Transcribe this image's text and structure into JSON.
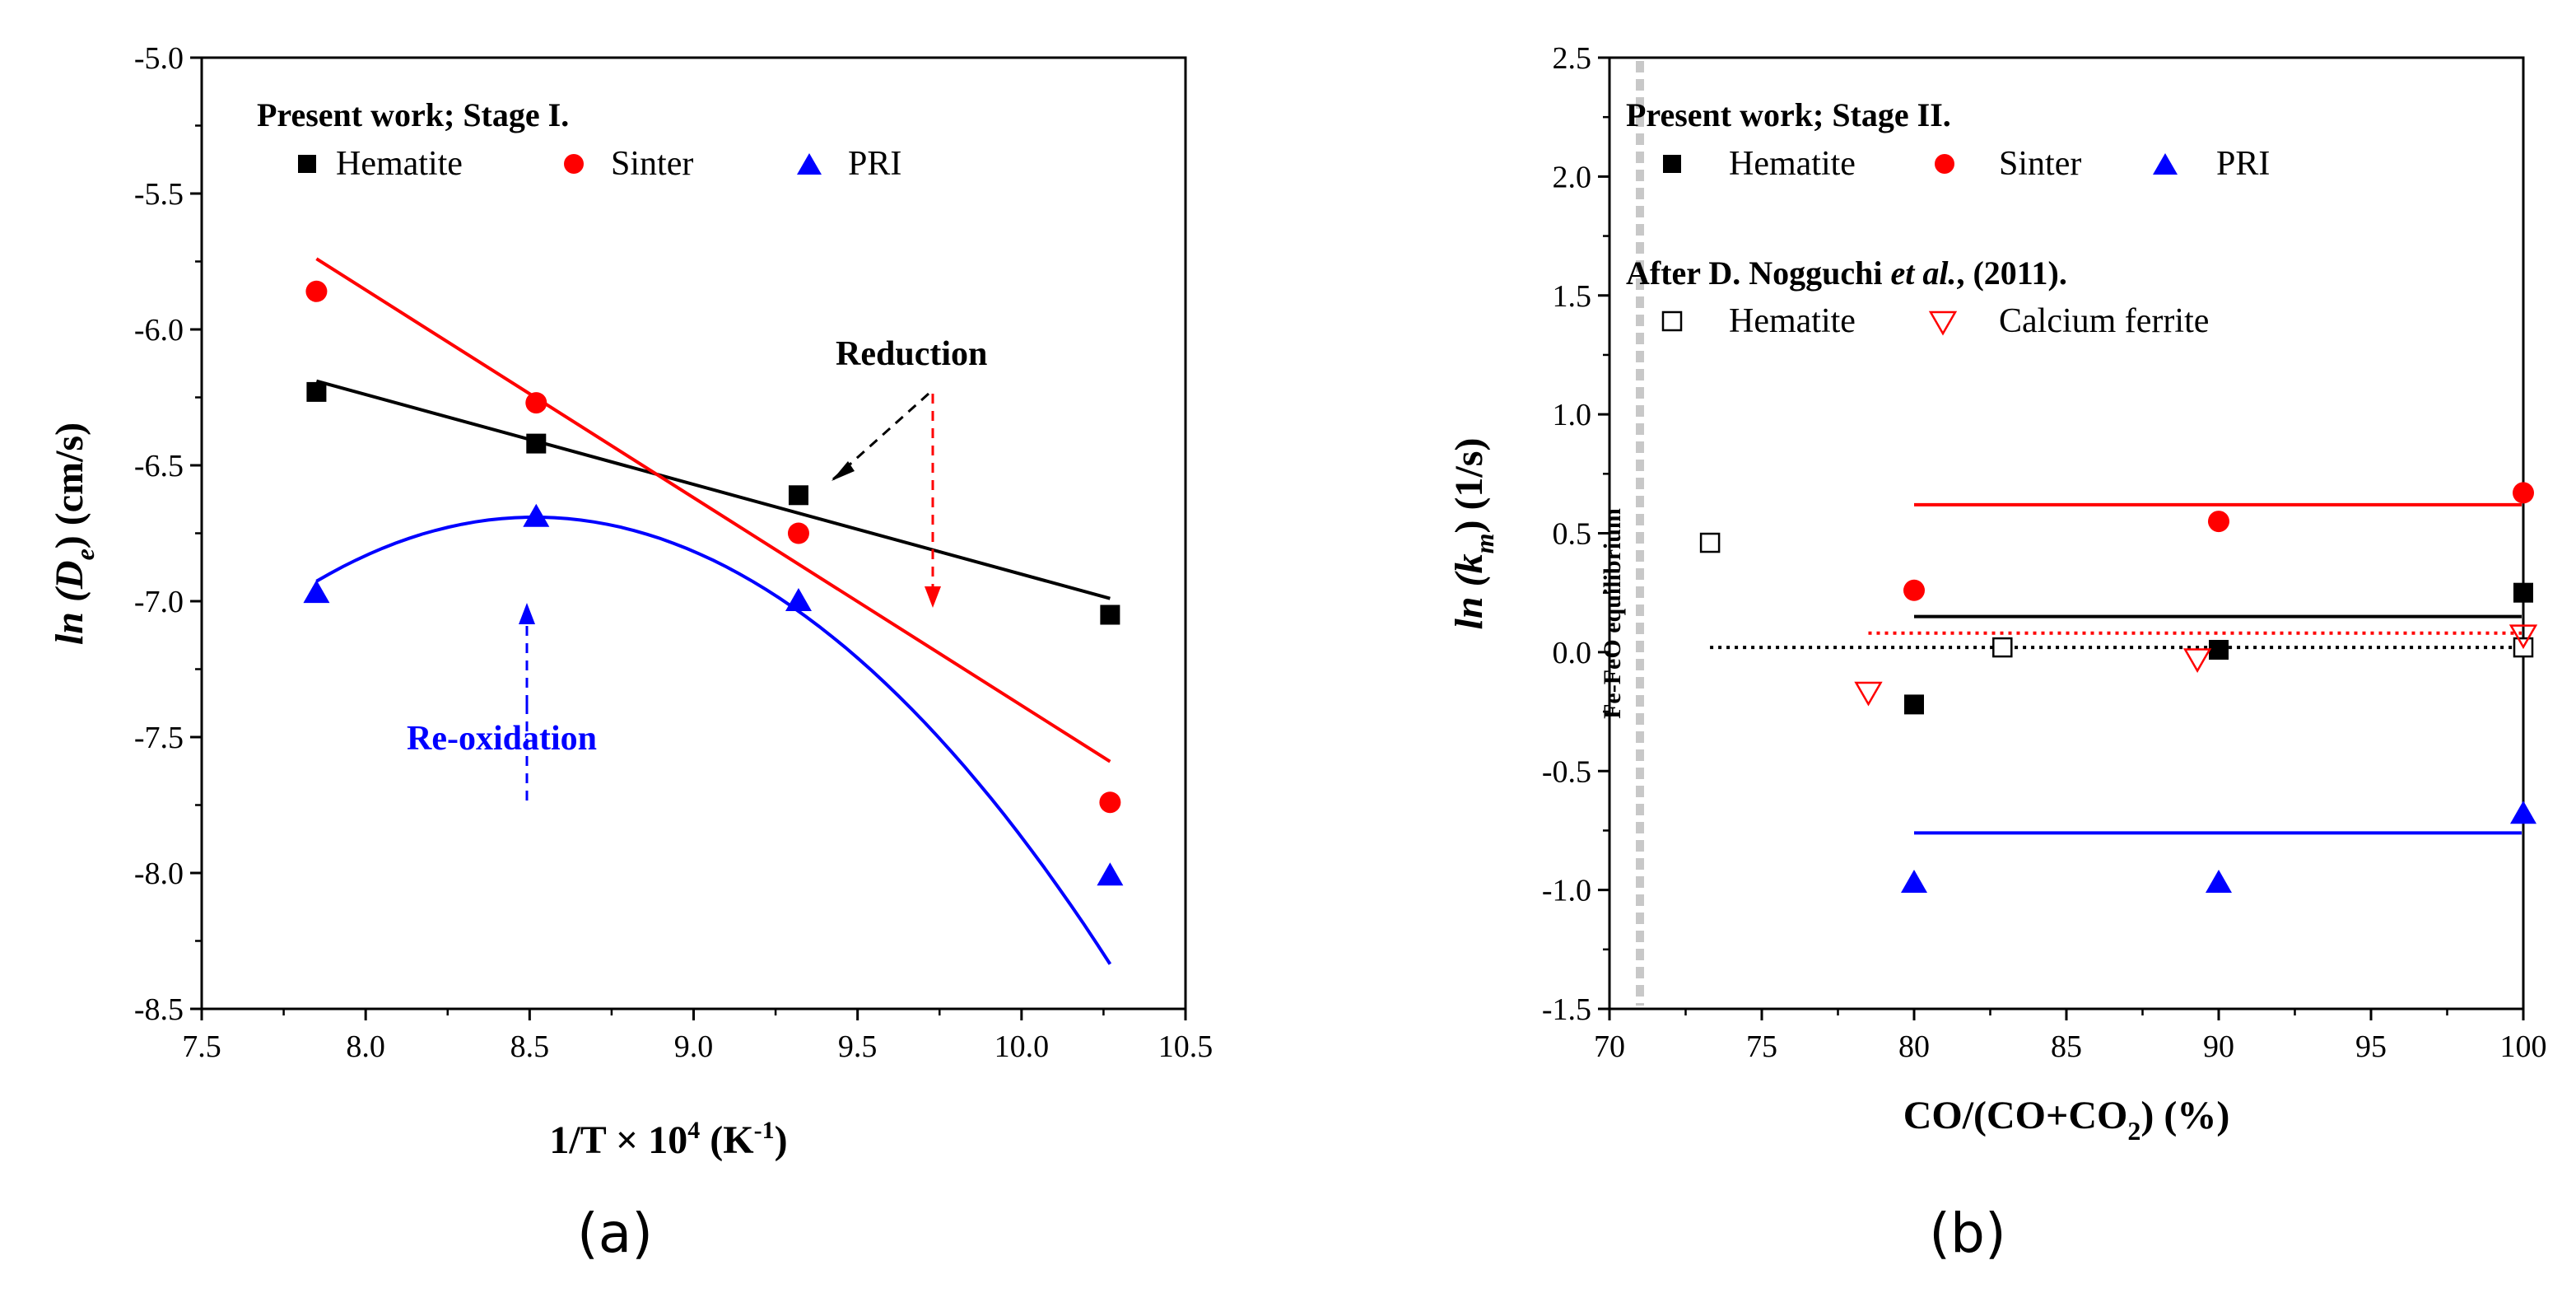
{
  "chart_data": [
    {
      "panel": "(a)",
      "type": "scatter",
      "xlabel": "1/T × 10",
      "xlabel_sup": "4",
      "xlabel_unit": " (K",
      "xlabel_unit_sup": "-1",
      "xlabel_close": ")",
      "ylabel": "ln (D",
      "ylabel_sub": "e",
      "ylabel_unit": ") (cm/s)",
      "xlim": [
        7.5,
        10.5
      ],
      "ylim": [
        -8.5,
        -5.0
      ],
      "xticks": [
        "7.5",
        "8.0",
        "8.5",
        "9.0",
        "9.5",
        "10.0",
        "10.5"
      ],
      "yticks": [
        "-8.5",
        "-8.0",
        "-7.5",
        "-7.0",
        "-6.5",
        "-6.0",
        "-5.5",
        "-5.0"
      ],
      "legend_title": "Present work; Stage I.",
      "series": [
        {
          "name": "Hematite",
          "marker": "square",
          "color": "#000000",
          "x": [
            7.85,
            8.52,
            9.32,
            10.27
          ],
          "y": [
            -6.23,
            -6.42,
            -6.61,
            -7.05
          ]
        },
        {
          "name": "Sinter",
          "marker": "circle",
          "color": "#ff0000",
          "x": [
            7.85,
            8.52,
            9.32,
            10.27
          ],
          "y": [
            -5.86,
            -6.27,
            -6.75,
            -7.74
          ]
        },
        {
          "name": "PRI",
          "marker": "triangle",
          "color": "#0000ff",
          "x": [
            7.85,
            8.52,
            9.32,
            10.27
          ],
          "y": [
            -6.97,
            -6.69,
            -7.0,
            -8.01
          ]
        }
      ],
      "fits": [
        {
          "series": "Hematite",
          "kind": "linear",
          "x": [
            7.85,
            10.27
          ],
          "y": [
            -6.19,
            -6.99
          ]
        },
        {
          "series": "Sinter",
          "kind": "linear",
          "x": [
            7.85,
            10.27
          ],
          "y": [
            -5.74,
            -7.59
          ]
        },
        {
          "series": "PRI",
          "kind": "quadratic",
          "coef": [
            -0.5336,
            9.0868,
            -45.3761
          ],
          "x": [
            7.85,
            10.27
          ]
        }
      ],
      "annotations": [
        {
          "text": "Reduction",
          "color": "#000000"
        },
        {
          "text": "Re-oxidation",
          "color": "#0000ff"
        }
      ]
    },
    {
      "panel": "(b)",
      "type": "scatter",
      "xlabel": "CO/(CO+CO",
      "xlabel_sub": "2",
      "xlabel_unit": ") (%)",
      "ylabel": "ln (k",
      "ylabel_sub": "m",
      "ylabel_unit": ") (1/s)",
      "xlim": [
        70,
        100
      ],
      "ylim": [
        -1.5,
        2.5
      ],
      "xticks": [
        "70",
        "75",
        "80",
        "85",
        "90",
        "95",
        "100"
      ],
      "yticks": [
        "-1.5",
        "-1.0",
        "-0.5",
        "0.0",
        "0.5",
        "1.0",
        "1.5",
        "2.0",
        "2.5"
      ],
      "legend_title": "Present work; Stage II.",
      "legend_title2_prefix": "After  D. Nogguchi ",
      "legend_title2_italic": "et al.",
      "legend_title2_suffix": ", (2011).",
      "vertical_line": {
        "x": 71,
        "label": "Fe-FeO equilibrium",
        "color": "#c8c8c8"
      },
      "series": [
        {
          "name": "Hematite",
          "marker": "square",
          "color": "#000000",
          "x": [
            80,
            90,
            100
          ],
          "y": [
            -0.22,
            0.01,
            0.25
          ]
        },
        {
          "name": "Sinter",
          "marker": "circle",
          "color": "#ff0000",
          "x": [
            80,
            90,
            100
          ],
          "y": [
            0.26,
            0.55,
            0.67
          ]
        },
        {
          "name": "PRI",
          "marker": "triangle",
          "color": "#0000ff",
          "x": [
            80,
            90,
            100
          ],
          "y": [
            -0.97,
            -0.97,
            -0.68
          ]
        },
        {
          "name": "Hematite",
          "group": "Nogguchi",
          "marker": "open-square",
          "color": "#000000",
          "x": [
            73.3,
            82.9,
            100
          ],
          "y": [
            0.46,
            0.02,
            0.02
          ]
        },
        {
          "name": "Calcium ferrite",
          "group": "Nogguchi",
          "marker": "open-triangle-down",
          "color": "#ff0000",
          "x": [
            78.5,
            89.3,
            100
          ],
          "y": [
            -0.17,
            -0.03,
            0.07
          ]
        }
      ],
      "fits": [
        {
          "series": "Sinter",
          "kind": "mean",
          "y": 0.62,
          "x": [
            80,
            100
          ],
          "color": "#ff0000",
          "dash": "solid"
        },
        {
          "series": "Hematite",
          "kind": "mean",
          "y": 0.15,
          "x": [
            80,
            100
          ],
          "color": "#000000",
          "dash": "solid"
        },
        {
          "series": "Calcium ferrite",
          "kind": "mean",
          "y": 0.08,
          "x": [
            78.5,
            100
          ],
          "color": "#ff0000",
          "dash": "dotted"
        },
        {
          "series": "Hematite (Nogguchi)",
          "kind": "mean",
          "y": 0.02,
          "x": [
            73.3,
            100
          ],
          "color": "#000000",
          "dash": "dotted"
        },
        {
          "series": "PRI",
          "kind": "mean",
          "y": -0.76,
          "x": [
            80,
            100
          ],
          "color": "#0000ff",
          "dash": "solid"
        }
      ]
    }
  ]
}
